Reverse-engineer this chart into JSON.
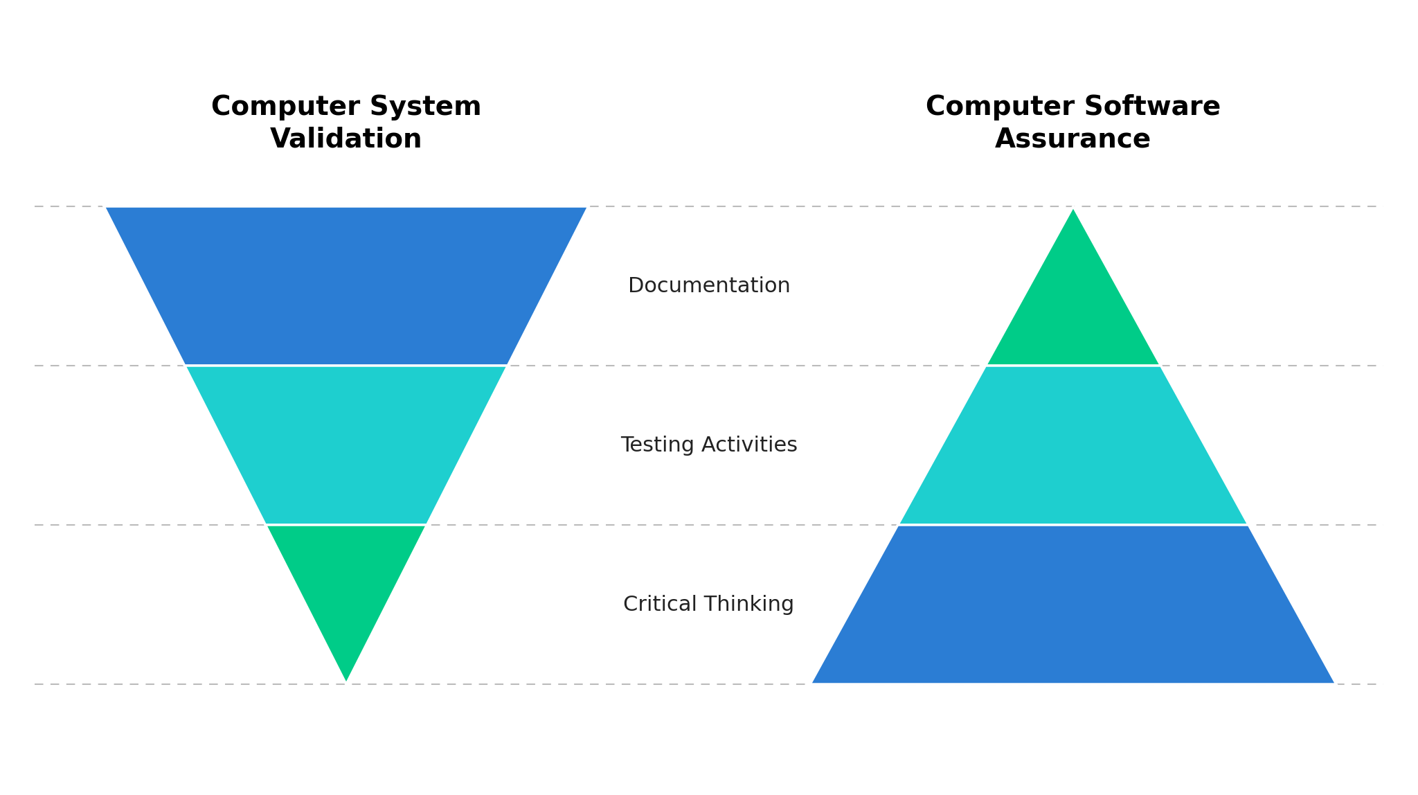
{
  "left_title": "Computer System\nValidation",
  "right_title": "Computer Software\nAssurance",
  "labels": [
    "Documentation",
    "Testing Activities",
    "Critical Thinking"
  ],
  "background_color": "#ffffff",
  "title_color": "#000000",
  "label_color": "#222222",
  "title_fontsize": 28,
  "label_fontsize": 22,
  "dashed_line_color": "#bbbbbb",
  "left_colors": [
    "#2b7dd4",
    "#1ecfcf",
    "#00cc88"
  ],
  "right_colors": [
    "#00cc88",
    "#1ecfcf",
    "#2b7dd4"
  ],
  "fig_width": 20.48,
  "fig_height": 11.48,
  "dpi": 100
}
